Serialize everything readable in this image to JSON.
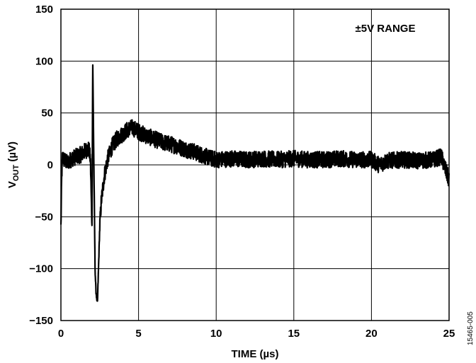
{
  "chart_data": {
    "type": "line",
    "title": "",
    "xlabel": "TIME (µs)",
    "ylabel_main": "V",
    "ylabel_sub": "OUT",
    "ylabel_unit": " (µV)",
    "xlim": [
      0,
      25
    ],
    "ylim": [
      -150,
      150
    ],
    "x_ticks": [
      0,
      5,
      10,
      15,
      20,
      25
    ],
    "y_ticks": [
      150,
      100,
      50,
      0,
      -50,
      -100,
      -150
    ],
    "x_tick_labels": [
      "0",
      "5",
      "10",
      "15",
      "20",
      "25"
    ],
    "y_tick_labels": [
      "150",
      "100",
      "50",
      "0",
      "−50",
      "−100",
      "−150"
    ],
    "grid": true,
    "annotation": "±5V RANGE",
    "series": [
      {
        "color": "#000000",
        "x": [
          0,
          0.05,
          0.1,
          0.2,
          0.4,
          0.7,
          1.0,
          1.3,
          1.6,
          1.8,
          1.9,
          2.0,
          2.05,
          2.1,
          2.2,
          2.25,
          2.35,
          2.4,
          2.5,
          2.6,
          2.8,
          3.0,
          3.3,
          3.6,
          4.0,
          4.3,
          4.6,
          5.0,
          5.5,
          6.0,
          6.5,
          7.0,
          7.5,
          8.0,
          8.5,
          9.0,
          9.5,
          10.0,
          11.0,
          12.0,
          13.0,
          14.0,
          15.0,
          16.0,
          17.0,
          18.0,
          19.0,
          20.0,
          20.5,
          21.0,
          22.0,
          23.0,
          24.0,
          24.5,
          25.0
        ],
        "y": [
          -60,
          -10,
          8,
          5,
          2,
          6,
          8,
          10,
          14,
          15,
          5,
          -60,
          100,
          30,
          -100,
          -120,
          -135,
          -110,
          -60,
          -35,
          -10,
          5,
          18,
          25,
          30,
          34,
          36,
          32,
          28,
          25,
          22,
          20,
          18,
          15,
          13,
          10,
          7,
          5,
          6,
          5,
          6,
          5,
          6,
          5,
          5,
          6,
          5,
          5,
          0,
          4,
          5,
          4,
          5,
          8,
          -15
        ]
      }
    ]
  },
  "figure_id": "15465-005"
}
